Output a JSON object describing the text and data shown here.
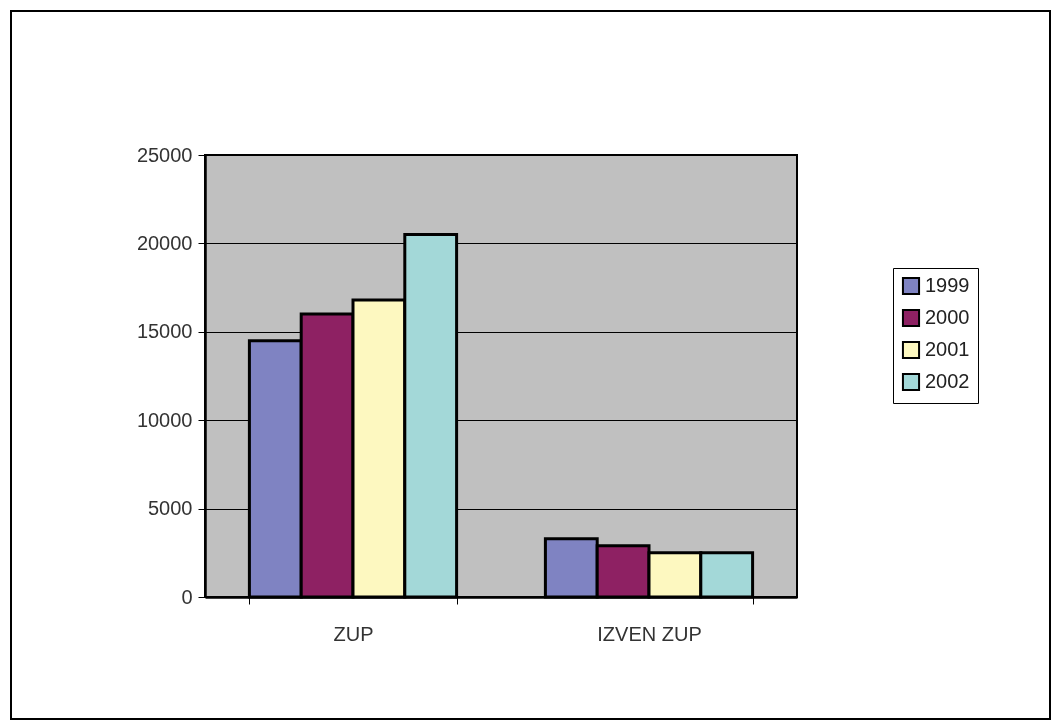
{
  "chart_data": {
    "type": "bar",
    "categories": [
      "ZUP",
      "IZVEN ZUP"
    ],
    "series": [
      {
        "name": "1999",
        "color": "#7f83c2",
        "values": [
          14500,
          3300
        ]
      },
      {
        "name": "2000",
        "color": "#8e2163",
        "values": [
          16000,
          2900
        ]
      },
      {
        "name": "2001",
        "color": "#fdf8c0",
        "values": [
          16800,
          2500
        ]
      },
      {
        "name": "2002",
        "color": "#a3d8d8",
        "values": [
          20500,
          2500
        ]
      }
    ],
    "ylim": [
      0,
      25000
    ],
    "yticks": [
      0,
      5000,
      10000,
      15000,
      20000,
      25000
    ],
    "grid": "y",
    "legend": "right"
  }
}
